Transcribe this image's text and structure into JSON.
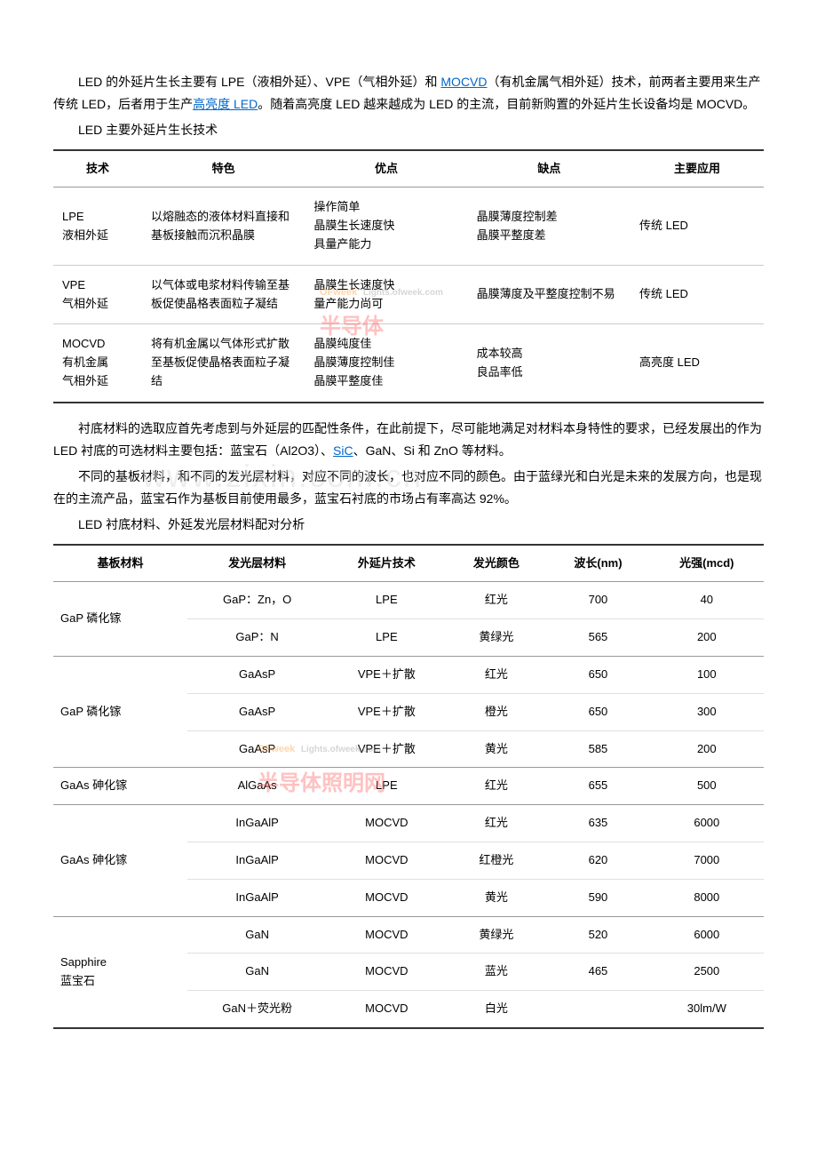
{
  "intro": {
    "p1_before_link1": "LED 的外延片生长主要有 LPE（液相外延）、VPE（气相外延）和 ",
    "link1_text": "MOCVD",
    "p1_after_link1": "（有机金属气相外延）技术，前两者主要用来生产传统 LED，后者用于生产",
    "link2_text": "高亮度 LED",
    "p1_after_link2": "。随着高亮度 LED 越来越成为 LED 的主流，目前新购置的外延片生长设备均是 MOCVD。"
  },
  "section1_title": "LED 主要外延片生长技术",
  "table1": {
    "headers": [
      "技术",
      "特色",
      "优点",
      "缺点",
      "主要应用"
    ],
    "rows": [
      {
        "tech": "LPE\n液相外延",
        "feature": "以熔融态的液体材料直接和基板接触而沉积晶膜",
        "pro": "操作简单\n晶膜生长速度快\n具量产能力",
        "con": "晶膜薄度控制差\n晶膜平整度差",
        "app": "传统 LED"
      },
      {
        "tech": "VPE\n气相外延",
        "feature": "以气体或电浆材料传输至基板促使晶格表面粒子凝结",
        "pro": "晶膜生长速度快\n量产能力尚可",
        "con": "晶膜薄度及平整度控制不易",
        "app": "传统 LED"
      },
      {
        "tech": "MOCVD\n有机金属\n气相外延",
        "feature": "将有机金属以气体形式扩散至基板促使晶格表面粒子凝结",
        "pro": "晶膜纯度佳\n晶膜薄度控制佳\n晶膜平整度佳",
        "con": "成本较高\n良品率低",
        "app": "高亮度 LED"
      }
    ]
  },
  "mid_paragraphs": {
    "p1_before_link": "衬底材料的选取应首先考虑到与外延层的匹配性条件，在此前提下，尽可能地满足对材料本身特性的要求，已经发展出的作为 LED 衬底的可选材料主要包括：蓝宝石（Al2O3）、",
    "link_text": "SiC",
    "p1_after_link": "、GaN、Si 和 ZnO 等材料。",
    "p2": "不同的基板材料，和不同的发光层材料，对应不同的波长，也对应不同的颜色。由于蓝绿光和白光是未来的发展方向，也是现在的主流产品，蓝宝石作为基板目前使用最多，蓝宝石衬底的市场占有率高达 92%。"
  },
  "section2_title": "LED 衬底材料、外延发光层材料配对分析",
  "table2": {
    "headers": [
      "基板材料",
      "发光层材料",
      "外延片技术",
      "发光颜色",
      "波长(nm)",
      "光强(mcd)"
    ],
    "groups": [
      {
        "substrate": "GaP 磷化镓",
        "rows": [
          {
            "layer": "GaP：Zn，O",
            "tech": "LPE",
            "color": "红光",
            "wavelength": "700",
            "intensity": "40"
          },
          {
            "layer": "GaP：N",
            "tech": "LPE",
            "color": "黄绿光",
            "wavelength": "565",
            "intensity": "200"
          }
        ]
      },
      {
        "substrate": "GaP 磷化镓",
        "rows": [
          {
            "layer": "GaAsP",
            "tech": "VPE＋扩散",
            "color": "红光",
            "wavelength": "650",
            "intensity": "100"
          },
          {
            "layer": "GaAsP",
            "tech": "VPE＋扩散",
            "color": "橙光",
            "wavelength": "650",
            "intensity": "300"
          },
          {
            "layer": "GaAsP",
            "tech": "VPE＋扩散",
            "color": "黄光",
            "wavelength": "585",
            "intensity": "200"
          }
        ]
      },
      {
        "substrate": "GaAs 砷化镓",
        "rows": [
          {
            "layer": "AlGaAs",
            "tech": "LPE",
            "color": "红光",
            "wavelength": "655",
            "intensity": "500"
          }
        ]
      },
      {
        "substrate": "GaAs 砷化镓",
        "rows": [
          {
            "layer": "InGaAlP",
            "tech": "MOCVD",
            "color": "红光",
            "wavelength": "635",
            "intensity": "6000"
          },
          {
            "layer": "InGaAlP",
            "tech": "MOCVD",
            "color": "红橙光",
            "wavelength": "620",
            "intensity": "7000"
          },
          {
            "layer": "InGaAlP",
            "tech": "MOCVD",
            "color": "黄光",
            "wavelength": "590",
            "intensity": "8000"
          }
        ]
      },
      {
        "substrate": "Sapphire\n蓝宝石",
        "rows": [
          {
            "layer": "GaN",
            "tech": "MOCVD",
            "color": "黄绿光",
            "wavelength": "520",
            "intensity": "6000"
          },
          {
            "layer": "GaN",
            "tech": "MOCVD",
            "color": "蓝光",
            "wavelength": "465",
            "intensity": "2500"
          },
          {
            "layer": "GaN＋荧光粉",
            "tech": "MOCVD",
            "color": "白光",
            "wavelength": "",
            "intensity": "30lm/W"
          }
        ]
      }
    ]
  },
  "watermarks": {
    "wm1_main": "半导体",
    "wm1_sub_prefix": "OFweek",
    "wm1_sub": "Lights.ofweek.com",
    "wm2": "www.zixin.com.cn",
    "wm3_main": "半导体照明网",
    "wm3_sub": "Lights.ofweek.com"
  }
}
